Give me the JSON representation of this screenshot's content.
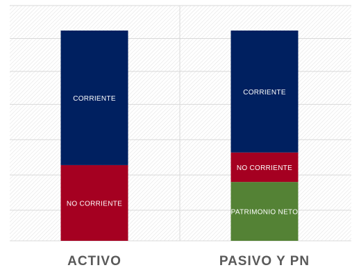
{
  "chart_data": {
    "type": "bar",
    "stacked": true,
    "categories": [
      "ACTIVO",
      "PASIVO Y PN"
    ],
    "series": [
      {
        "name": "PATRIMONIO NETO",
        "values": [
          0,
          28
        ],
        "color": "#548235"
      },
      {
        "name": "NO CORRIENTE",
        "values": [
          36,
          14
        ],
        "color": "#A50021"
      },
      {
        "name": "CORRIENTE",
        "values": [
          64,
          58
        ],
        "color": "#002060"
      }
    ],
    "ylim": [
      0,
      100
    ],
    "grid": true,
    "legend": "none",
    "title": "",
    "xlabel": "",
    "ylabel": ""
  }
}
